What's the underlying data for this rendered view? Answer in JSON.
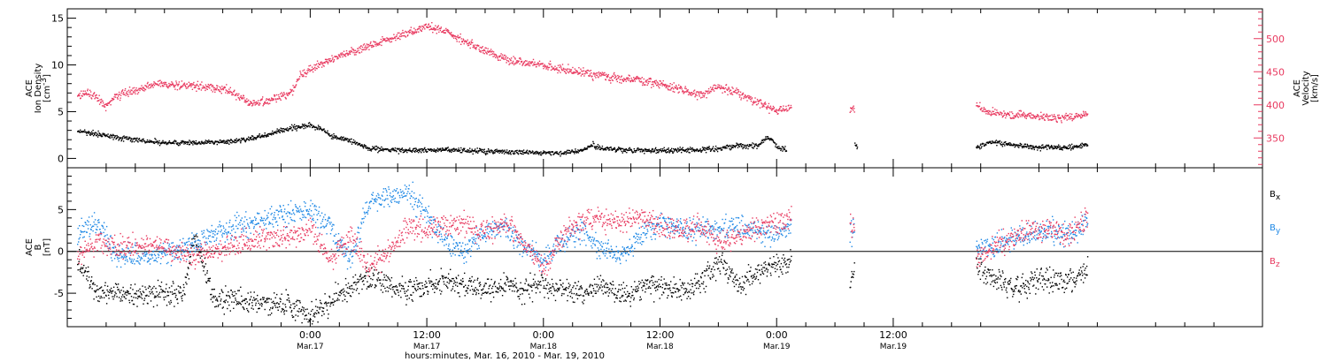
{
  "chart_data": [
    {
      "type": "scatter",
      "ylabel_lines": [
        "ACE",
        "Ion Density"
      ],
      "yunit": "[cm",
      "yunit_sup": "-3",
      "yunit_end": "]",
      "ylim": [
        -1,
        16
      ],
      "yticks": [
        0,
        5,
        10,
        15
      ],
      "right_axis": {
        "label_lines": [
          "ACE",
          "Velocity"
        ],
        "unit": "[km/s]",
        "ylim": [
          305,
          545
        ],
        "ticks": [
          350,
          400,
          450,
          500
        ],
        "color": "#e8395f"
      },
      "series": [
        {
          "name": "",
          "axis": "left",
          "color": "#000000",
          "points": [
            [
              -24,
              3.0
            ],
            [
              -20,
              2.3
            ],
            [
              -16,
              1.8
            ],
            [
              -12,
              1.7
            ],
            [
              -8,
              1.9
            ],
            [
              -5,
              2.4
            ],
            [
              -3,
              3.1
            ],
            [
              0,
              3.6
            ],
            [
              1,
              3.3
            ],
            [
              2,
              2.6
            ],
            [
              3,
              2.2
            ],
            [
              4,
              2.0
            ],
            [
              6,
              1.1
            ],
            [
              10,
              0.9
            ],
            [
              14,
              1.0
            ],
            [
              18,
              0.8
            ],
            [
              22,
              0.7
            ],
            [
              26,
              0.6
            ],
            [
              28,
              0.9
            ],
            [
              29,
              1.5
            ],
            [
              30,
              1.1
            ],
            [
              34,
              0.9
            ],
            [
              38,
              0.9
            ],
            [
              42,
              1.1
            ],
            [
              44,
              1.5
            ],
            [
              45,
              1.3
            ],
            [
              46,
              1.5
            ],
            [
              47,
              2.3
            ],
            [
              47.5,
              2.0
            ],
            [
              48,
              1.2
            ],
            [
              49,
              1.0
            ]
          ]
        },
        {
          "name": "",
          "axis": "right",
          "color": "#e8395f",
          "points": [
            [
              -24,
              415
            ],
            [
              -23,
              420
            ],
            [
              -21,
              400
            ],
            [
              -20,
              415
            ],
            [
              -16,
              432
            ],
            [
              -12,
              430
            ],
            [
              -9,
              425
            ],
            [
              -8,
              418
            ],
            [
              -6,
              402
            ],
            [
              -4,
              408
            ],
            [
              -2,
              420
            ],
            [
              -1,
              445
            ],
            [
              0,
              455
            ],
            [
              2,
              470
            ],
            [
              4,
              480
            ],
            [
              6,
              490
            ],
            [
              8,
              500
            ],
            [
              10,
              510
            ],
            [
              12,
              520
            ],
            [
              14,
              510
            ],
            [
              16,
              495
            ],
            [
              18,
              482
            ],
            [
              20,
              470
            ],
            [
              22,
              465
            ],
            [
              24,
              460
            ],
            [
              26,
              455
            ],
            [
              28,
              450
            ],
            [
              30,
              445
            ],
            [
              32,
              440
            ],
            [
              34,
              438
            ],
            [
              36,
              432
            ],
            [
              38,
              425
            ],
            [
              40,
              415
            ],
            [
              42,
              428
            ],
            [
              44,
              418
            ],
            [
              46,
              405
            ],
            [
              48,
              392
            ],
            [
              49.5,
              400
            ]
          ]
        },
        {
          "name": "",
          "axis": "left",
          "color": "#000000",
          "points": [
            [
              56,
              1.5
            ],
            [
              56.3,
              1.2
            ],
            [
              68.5,
              1.2
            ],
            [
              70,
              1.8
            ],
            [
              74,
              1.3
            ],
            [
              78,
              1.2
            ],
            [
              80,
              1.6
            ]
          ]
        },
        {
          "name": "",
          "axis": "right",
          "color": "#e8395f",
          "points": [
            [
              55.5,
              395
            ],
            [
              56,
              395
            ],
            [
              68.5,
              398
            ],
            [
              70,
              390
            ],
            [
              72,
              385
            ],
            [
              74,
              385
            ],
            [
              76,
              380
            ],
            [
              78,
              383
            ],
            [
              80,
              386
            ]
          ]
        }
      ],
      "xlim": [
        -25,
        98
      ]
    },
    {
      "type": "scatter",
      "ylabel_lines": [
        "ACE",
        "B"
      ],
      "yunit": "[nT]",
      "ylim": [
        -9,
        10
      ],
      "yticks": [
        -5,
        0,
        5
      ],
      "zero_line": true,
      "legend_position": "right",
      "series": [
        {
          "name": "B",
          "name_sub": "x",
          "color": "#000000",
          "points": [
            [
              -24,
              -1
            ],
            [
              -22,
              -4.5
            ],
            [
              -18,
              -5.0
            ],
            [
              -16,
              -5.2
            ],
            [
              -13,
              -5.0
            ],
            [
              -12,
              2.0
            ],
            [
              -10,
              -5.5
            ],
            [
              -6,
              -5.8
            ],
            [
              -2,
              -6.5
            ],
            [
              0,
              -7.5
            ],
            [
              2,
              -6.0
            ],
            [
              4,
              -4.5
            ],
            [
              6,
              -3.0
            ],
            [
              8,
              -4.0
            ],
            [
              10,
              -4.5
            ],
            [
              12,
              -4.0
            ],
            [
              14,
              -3.5
            ],
            [
              16,
              -4.0
            ],
            [
              18,
              -4.5
            ],
            [
              20,
              -4.0
            ],
            [
              22,
              -4.5
            ],
            [
              24,
              -4.0
            ],
            [
              26,
              -4.5
            ],
            [
              28,
              -5.0
            ],
            [
              30,
              -4.0
            ],
            [
              32,
              -5.0
            ],
            [
              34,
              -4.5
            ],
            [
              36,
              -4.0
            ],
            [
              38,
              -4.5
            ],
            [
              40,
              -4.0
            ],
            [
              42,
              -1.0
            ],
            [
              44,
              -4.0
            ],
            [
              46,
              -2.5
            ],
            [
              48,
              -1.5
            ],
            [
              49.5,
              -1.0
            ]
          ]
        },
        {
          "name": "B",
          "name_sub": "y",
          "color": "#1e88e5",
          "points": [
            [
              -24,
              2.5
            ],
            [
              -22,
              3.5
            ],
            [
              -20,
              -0.5
            ],
            [
              -16,
              -0.5
            ],
            [
              -12,
              1.0
            ],
            [
              -10,
              2.0
            ],
            [
              -6,
              3.5
            ],
            [
              -2,
              4.5
            ],
            [
              0,
              5.0
            ],
            [
              2,
              3.0
            ],
            [
              4,
              -1.0
            ],
            [
              6,
              6.0
            ],
            [
              8,
              6.5
            ],
            [
              10,
              7.0
            ],
            [
              12,
              4.5
            ],
            [
              14,
              1.0
            ],
            [
              16,
              0.0
            ],
            [
              18,
              2.5
            ],
            [
              20,
              3.0
            ],
            [
              22,
              0.5
            ],
            [
              24,
              -1.0
            ],
            [
              26,
              1.5
            ],
            [
              28,
              2.5
            ],
            [
              30,
              0.0
            ],
            [
              32,
              -0.5
            ],
            [
              34,
              2.0
            ],
            [
              36,
              3.5
            ],
            [
              38,
              3.0
            ],
            [
              40,
              2.5
            ],
            [
              42,
              3.0
            ],
            [
              44,
              3.0
            ],
            [
              46,
              2.5
            ],
            [
              48,
              2.0
            ],
            [
              49.5,
              3.5
            ]
          ]
        },
        {
          "name": "B",
          "name_sub": "z",
          "color": "#e8395f",
          "points": [
            [
              -24,
              -0.5
            ],
            [
              -22,
              1.0
            ],
            [
              -20,
              0.5
            ],
            [
              -16,
              1.0
            ],
            [
              -12,
              -0.5
            ],
            [
              -10,
              0.0
            ],
            [
              -6,
              1.5
            ],
            [
              -2,
              2.0
            ],
            [
              0,
              3.0
            ],
            [
              2,
              -1.0
            ],
            [
              4,
              2.0
            ],
            [
              6,
              -2.0
            ],
            [
              8,
              0.0
            ],
            [
              10,
              3.0
            ],
            [
              12,
              2.5
            ],
            [
              14,
              3.5
            ],
            [
              16,
              3.0
            ],
            [
              18,
              2.5
            ],
            [
              20,
              3.5
            ],
            [
              22,
              1.0
            ],
            [
              24,
              -2.0
            ],
            [
              26,
              2.0
            ],
            [
              28,
              3.5
            ],
            [
              30,
              4.0
            ],
            [
              32,
              3.5
            ],
            [
              34,
              4.0
            ],
            [
              36,
              3.0
            ],
            [
              38,
              2.5
            ],
            [
              40,
              3.0
            ],
            [
              42,
              1.0
            ],
            [
              44,
              2.0
            ],
            [
              46,
              3.0
            ],
            [
              48,
              3.5
            ],
            [
              49.5,
              4.0
            ]
          ]
        },
        {
          "name": "B",
          "name_sub": "x",
          "color": "#000000",
          "points": [
            [
              55.5,
              -4.0
            ],
            [
              56,
              -1.5
            ],
            [
              68.5,
              -1.0
            ],
            [
              69.5,
              -2.5
            ],
            [
              71,
              -3.5
            ],
            [
              73,
              -4.5
            ],
            [
              75,
              -3.0
            ],
            [
              78,
              -3.5
            ],
            [
              80,
              -2.0
            ]
          ]
        },
        {
          "name": "B",
          "name_sub": "y",
          "color": "#1e88e5",
          "points": [
            [
              55.5,
              2.5
            ],
            [
              56,
              1.5
            ],
            [
              68.5,
              1.0
            ],
            [
              70,
              0.5
            ],
            [
              72,
              1.5
            ],
            [
              74,
              2.0
            ],
            [
              76,
              2.5
            ],
            [
              78,
              2.0
            ],
            [
              80,
              3.5
            ]
          ]
        },
        {
          "name": "B",
          "name_sub": "z",
          "color": "#e8395f",
          "points": [
            [
              55.5,
              3.5
            ],
            [
              56,
              2.5
            ],
            [
              68.5,
              -1.0
            ],
            [
              70,
              0.5
            ],
            [
              72,
              1.5
            ],
            [
              74,
              2.5
            ],
            [
              76,
              2.5
            ],
            [
              78,
              2.0
            ],
            [
              80,
              4.0
            ]
          ]
        }
      ],
      "xlim": [
        -25,
        98
      ]
    }
  ],
  "x_axis": {
    "ticks": [
      {
        "hour": 0,
        "time": "0:00",
        "date": "Mar.17"
      },
      {
        "hour": 12,
        "time": "12:00",
        "date": "Mar.17"
      },
      {
        "hour": 24,
        "time": "0:00",
        "date": "Mar.18"
      },
      {
        "hour": 36,
        "time": "12:00",
        "date": "Mar.18"
      },
      {
        "hour": 48,
        "time": "0:00",
        "date": "Mar.19"
      },
      {
        "hour": 60,
        "time": "12:00",
        "date": "Mar.19"
      }
    ],
    "label": "hours:minutes, Mar. 16, 2010 - Mar. 19, 2010"
  }
}
